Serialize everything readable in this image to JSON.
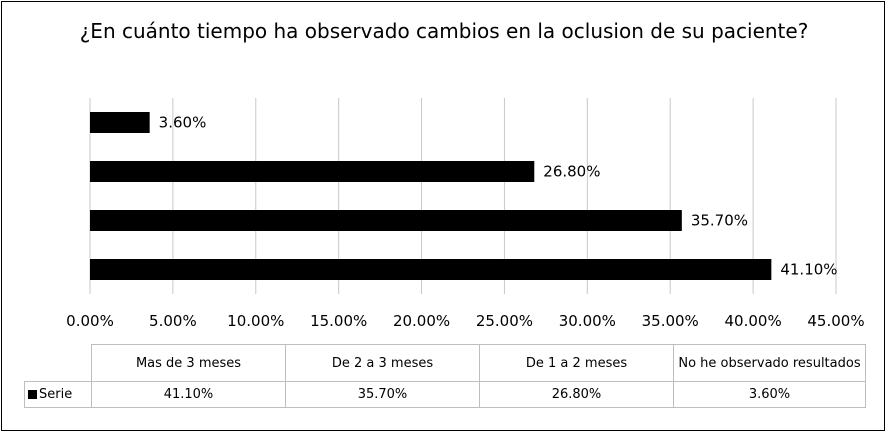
{
  "chart_data": {
    "type": "bar",
    "orientation": "horizontal",
    "title": "¿En cuánto tiempo ha observado cambios en la oclusion de su paciente?",
    "categories": [
      "Mas de 3 meses",
      "De 2 a 3 meses",
      "De 1 a 2 meses",
      "No he observado resultados"
    ],
    "series": [
      {
        "name": "Serie",
        "values": [
          41.1,
          35.7,
          26.8,
          3.6
        ],
        "color": "#000000"
      }
    ],
    "data_labels": [
      "41.10%",
      "35.70%",
      "26.80%",
      "3.60%"
    ],
    "x_ticks": [
      "0.00%",
      "5.00%",
      "10.00%",
      "15.00%",
      "20.00%",
      "25.00%",
      "30.00%",
      "35.00%",
      "40.00%",
      "45.00%"
    ],
    "xlim": [
      0,
      45
    ],
    "grid": true,
    "data_table": true,
    "table_values": [
      "41.10%",
      "35.70%",
      "26.80%",
      "3.60%"
    ],
    "xlabel": "",
    "ylabel": ""
  }
}
